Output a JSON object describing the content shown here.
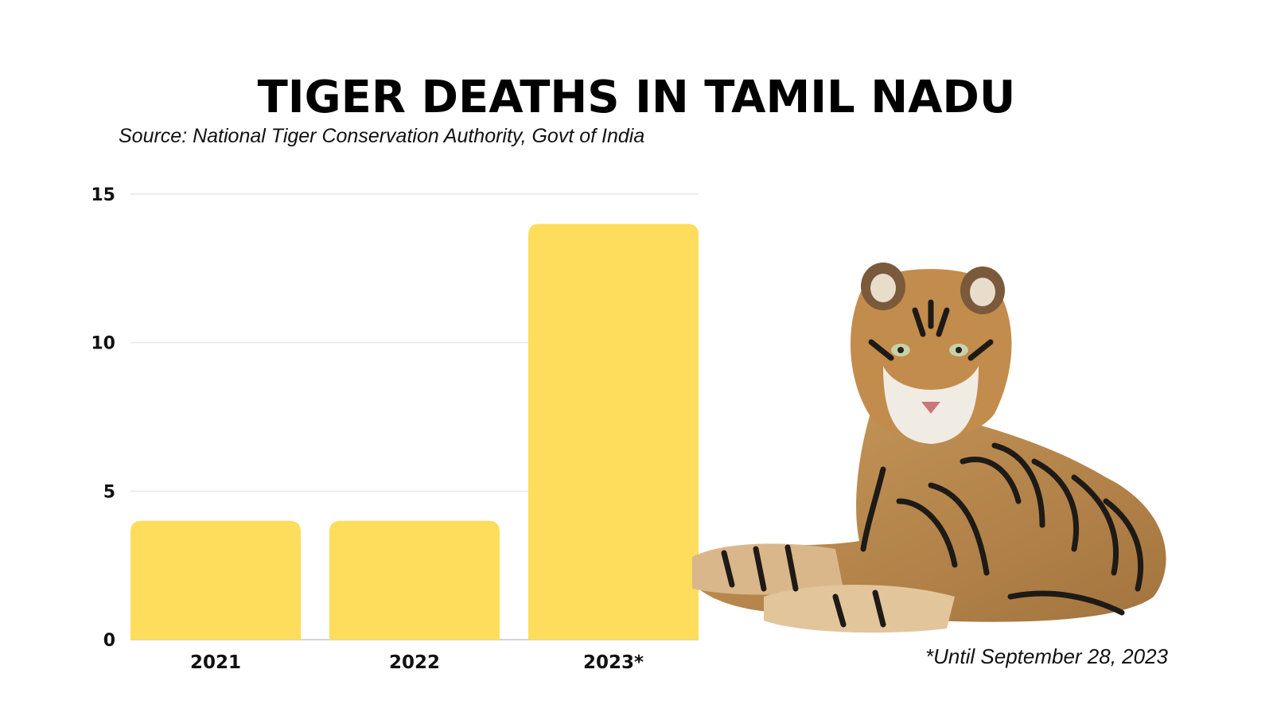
{
  "title": "TIGER DEATHS IN TAMIL NADU",
  "source": "Source: National Tiger Conservation Authority, Govt of India",
  "footnote": "*Until September 28, 2023",
  "image": {
    "icon": "tiger-photo"
  },
  "colors": {
    "bar": "#FDDD5B",
    "grid": "#E2E2E2",
    "text": "#111111"
  },
  "chart_data": {
    "type": "bar",
    "title": "TIGER DEATHS IN TAMIL NADU",
    "subtitle": "Source: National Tiger Conservation Authority, Govt of India",
    "categories": [
      "2021",
      "2022",
      "2023*"
    ],
    "values": [
      4,
      4,
      14
    ],
    "yticks": [
      "0",
      "5",
      "10",
      "15"
    ],
    "ylim": [
      0,
      15
    ],
    "grid": true,
    "xlabel": "",
    "ylabel": ""
  }
}
